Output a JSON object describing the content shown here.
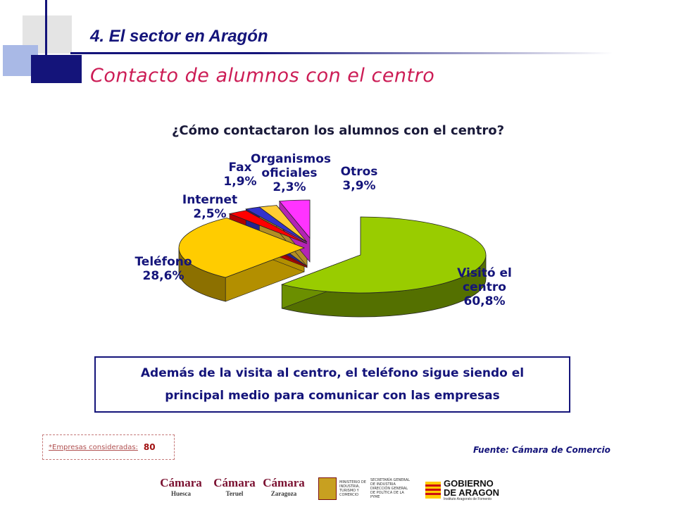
{
  "header": {
    "section_title": "4. El sector en Aragón",
    "subtitle": "Contacto de alumnos con el centro"
  },
  "chart_data": {
    "type": "pie",
    "title": "¿Cómo contactaron los alumnos con el centro?",
    "categories": [
      "Visitó el centro",
      "Teléfono",
      "Internet",
      "Fax",
      "Organismos oficiales",
      "Otros"
    ],
    "values": [
      60.8,
      28.6,
      2.5,
      1.9,
      2.3,
      3.9
    ],
    "value_labels": [
      "60,8%",
      "28,6%",
      "2,5%",
      "1,9%",
      "2,3%",
      "3,9%"
    ],
    "colors": [
      "#99cc00",
      "#ffcc00",
      "#ff0000",
      "#3333cc",
      "#ffcc33",
      "#ff33ff"
    ],
    "style": "3d-exploded"
  },
  "labels": {
    "visito_l1": "Visitó el",
    "visito_l2": "centro",
    "visito_pct": "60,8%",
    "telefono": "Teléfono",
    "telefono_pct": "28,6%",
    "internet": "Internet",
    "internet_pct": "2,5%",
    "fax": "Fax",
    "fax_pct": "1,9%",
    "organismos_l1": "Organismos",
    "organismos_l2": "oficiales",
    "organismos_pct": "2,3%",
    "otros": "Otros",
    "otros_pct": "3,9%"
  },
  "callout": {
    "line1": "Además de la visita al centro, el teléfono sigue siendo el",
    "line2": "principal medio para comunicar con las empresas"
  },
  "note": {
    "label": "*Empresas consideradas:",
    "value": "80"
  },
  "source": "Fuente: Cámara de Comercio",
  "footer_logos": {
    "camara": "Cámara",
    "huesca": "Huesca",
    "teruel": "Teruel",
    "zaragoza": "Zaragoza",
    "ministerio": "MINISTERIO DE INDUSTRIA, TURISMO Y COMERCIO",
    "secretaria": "SECRETARÍA GENERAL DE INDUSTRIA",
    "direccion": "DIRECCIÓN GENERAL DE POLÍTICA DE LA PYME",
    "gobierno_l1": "GOBIERNO",
    "gobierno_l2": "DE ARAGON",
    "instituto": "Instituto Aragonés de Fomento"
  }
}
